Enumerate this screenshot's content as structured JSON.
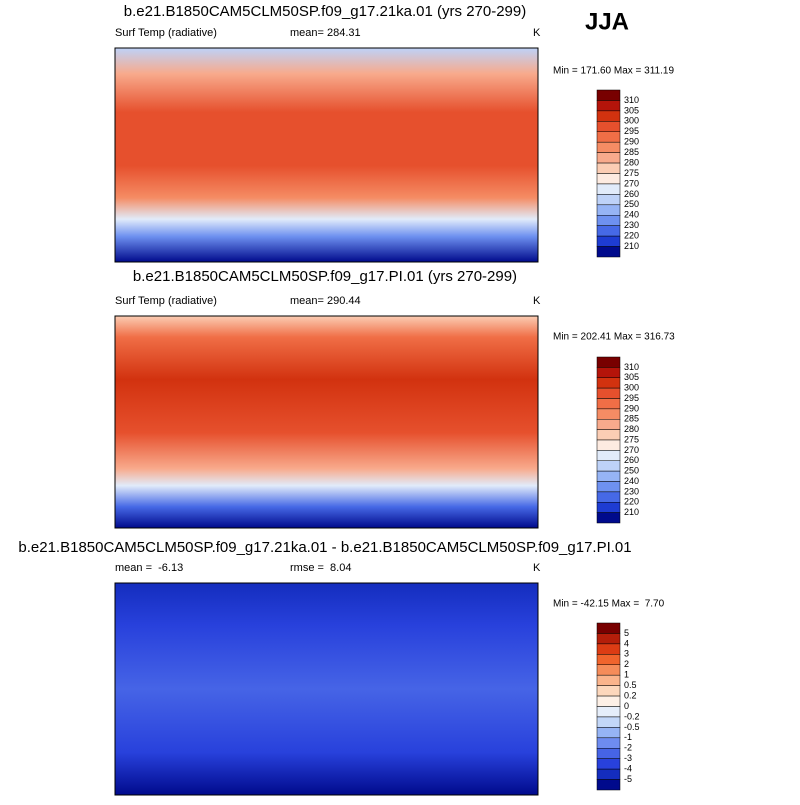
{
  "season": "JJA",
  "panels": [
    {
      "title": "b.e21.B1850CAM5CLM50SP.f09_g17.21ka.01 (yrs 270-299)",
      "variable": "Surf Temp (radiative)",
      "mean": "mean= 284.31",
      "units": "K",
      "minmax": "Min = 171.60 Max = 311.19",
      "colorbar": {
        "labels": [
          "310",
          "305",
          "300",
          "295",
          "290",
          "285",
          "280",
          "275",
          "270",
          "260",
          "250",
          "240",
          "230",
          "220",
          "210"
        ],
        "colors": [
          "#780000",
          "#b4140a",
          "#d2320f",
          "#e6502d",
          "#f06e46",
          "#f58c64",
          "#f8aa8c",
          "#fbcdb4",
          "#fdebe1",
          "#e1ebfa",
          "#bed2f8",
          "#96b4f5",
          "#6e91f0",
          "#4669e6",
          "#1e3cd2",
          "#000a8c"
        ]
      }
    },
    {
      "title": "b.e21.B1850CAM5CLM50SP.f09_g17.PI.01 (yrs 270-299)",
      "variable": "Surf Temp (radiative)",
      "mean": "mean= 290.44",
      "units": "K",
      "minmax": "Min = 202.41 Max = 316.73",
      "colorbar": {
        "labels": [
          "310",
          "305",
          "300",
          "295",
          "290",
          "285",
          "280",
          "275",
          "270",
          "260",
          "250",
          "240",
          "230",
          "220",
          "210"
        ],
        "colors": [
          "#780000",
          "#b4140a",
          "#d2320f",
          "#e6502d",
          "#f06e46",
          "#f58c64",
          "#f8aa8c",
          "#fbcdb4",
          "#fdebe1",
          "#e1ebfa",
          "#bed2f8",
          "#96b4f5",
          "#6e91f0",
          "#4669e6",
          "#1e3cd2",
          "#000a8c"
        ]
      }
    },
    {
      "title": "b.e21.B1850CAM5CLM50SP.f09_g17.21ka.01 - b.e21.B1850CAM5CLM50SP.f09_g17.PI.01",
      "mean": "mean =  -6.13",
      "rmse": "rmse =  8.04",
      "units": "K",
      "minmax": "Min = -42.15 Max =  7.70",
      "colorbar": {
        "labels": [
          "5",
          "4",
          "3",
          "2",
          "1",
          "0.5",
          "0.2",
          "0",
          "-0.2",
          "-0.5",
          "-1",
          "-2",
          "-3",
          "-4",
          "-5"
        ],
        "colors": [
          "#780000",
          "#b41e0a",
          "#dc3c14",
          "#f0642d",
          "#f58c5a",
          "#fab48c",
          "#fcd7bc",
          "#fdf0e6",
          "#e6eefa",
          "#c3d7f8",
          "#96b4f5",
          "#6e8cf0",
          "#4664e6",
          "#2841dc",
          "#142dbe",
          "#000a8c"
        ]
      }
    }
  ]
}
